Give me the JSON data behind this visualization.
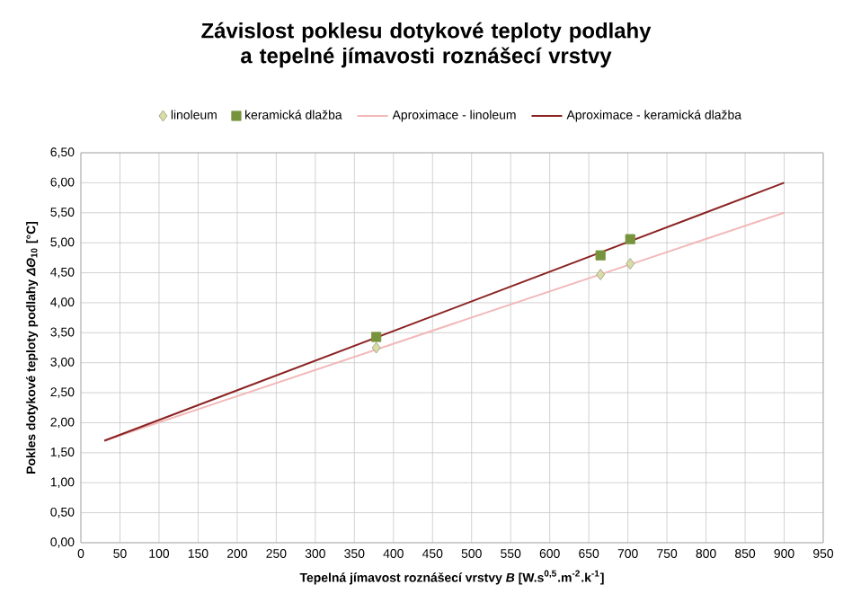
{
  "chart_data": {
    "type": "scatter",
    "title": "Závislost poklesu dotykové teploty podlahy a tepelné jímavosti roznášecí vrstvy",
    "xlabel": "Tepelná jímavost roznášecí vrstvy *B* [W.s$^{0,5}$.m$^{-2}$.k$^{-1}$]",
    "ylabel": "Pokles dotykové teploty podlahy *ΔΘ*$_{10}$ [°C]",
    "series": [
      {
        "name": "linoleum",
        "type": "scatter",
        "marker": "diamond",
        "color": "#d8dca8",
        "x": [
          378,
          665,
          703
        ],
        "values": [
          3.25,
          4.47,
          4.65
        ]
      },
      {
        "name": "keramická dlažba",
        "type": "scatter",
        "marker": "square",
        "color": "#77933c",
        "x": [
          378,
          665,
          703
        ],
        "values": [
          3.43,
          4.79,
          5.06
        ]
      },
      {
        "name": "Aproximace - linoleum",
        "type": "line",
        "marker": "none",
        "color": "#f2b8b8",
        "x": [
          30,
          900
        ],
        "values": [
          1.7,
          5.5
        ]
      },
      {
        "name": "Aproximace - keramická dlažba",
        "type": "line",
        "marker": "none",
        "color": "#8b2323",
        "x": [
          30,
          900
        ],
        "values": [
          1.7,
          6.0
        ]
      }
    ],
    "xlim": [
      0,
      950
    ],
    "ylim": [
      0,
      6.5
    ],
    "xticks": [
      0,
      50,
      100,
      150,
      200,
      250,
      300,
      350,
      400,
      450,
      500,
      550,
      600,
      650,
      700,
      750,
      800,
      850,
      900,
      950
    ],
    "yticks": [
      {
        "value": 0,
        "label": "0,00"
      },
      {
        "value": 0.5,
        "label": "0,50"
      },
      {
        "value": 1,
        "label": "1,00"
      },
      {
        "value": 1.5,
        "label": "1,50"
      },
      {
        "value": 2,
        "label": "2,00"
      },
      {
        "value": 2.5,
        "label": "2,50"
      },
      {
        "value": 3,
        "label": "3,00"
      },
      {
        "value": 3.5,
        "label": "3,50"
      },
      {
        "value": 4,
        "label": "4,00"
      },
      {
        "value": 4.5,
        "label": "4,50"
      },
      {
        "value": 5,
        "label": "5,00"
      },
      {
        "value": 5.5,
        "label": "5,50"
      },
      {
        "value": 6,
        "label": "6,00"
      },
      {
        "value": 6.5,
        "label": "6,50"
      }
    ],
    "grid": true,
    "legend": "top"
  }
}
